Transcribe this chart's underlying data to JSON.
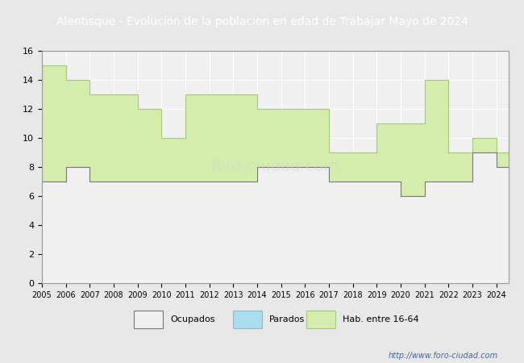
{
  "title": "Alentisque - Evolucion de la poblacion en edad de Trabajar Mayo de 2024",
  "title_color": "#333333",
  "title_bg_color": "#6699cc",
  "years": [
    2005,
    2006,
    2007,
    2008,
    2009,
    2010,
    2011,
    2012,
    2013,
    2014,
    2015,
    2016,
    2017,
    2018,
    2019,
    2020,
    2021,
    2022,
    2023,
    2024
  ],
  "hab_16_64": [
    15,
    14,
    13,
    13,
    12,
    10,
    13,
    13,
    13,
    12,
    12,
    12,
    9,
    9,
    11,
    11,
    14,
    9,
    10,
    9
  ],
  "ocupados": [
    7,
    8,
    7,
    7,
    7,
    7,
    7,
    7,
    7,
    8,
    8,
    8,
    7,
    7,
    7,
    6,
    7,
    7,
    9,
    8
  ],
  "parados": [
    0,
    0,
    0,
    0,
    0,
    0,
    0,
    0,
    0,
    0,
    0,
    0,
    0,
    0,
    0,
    0,
    0,
    0,
    0,
    0
  ],
  "hab_color": "#d4edac",
  "hab_edge_color": "#a8c878",
  "ocupados_color": "#f0f0f0",
  "ocupados_edge_color": "#777777",
  "parados_color": "#aaddee",
  "parados_edge_color": "#88bbcc",
  "bg_color": "#e8e8e8",
  "plot_bg_color": "#f0f0f0",
  "grid_color": "#ffffff",
  "ylim": [
    0,
    16
  ],
  "yticks": [
    0,
    2,
    4,
    6,
    8,
    10,
    12,
    14,
    16
  ],
  "watermark": "foro-ciudad.com",
  "watermark_url": "http://www.foro-ciudad.com",
  "legend_labels": [
    "Ocupados",
    "Parados",
    "Hab. entre 16-64"
  ]
}
